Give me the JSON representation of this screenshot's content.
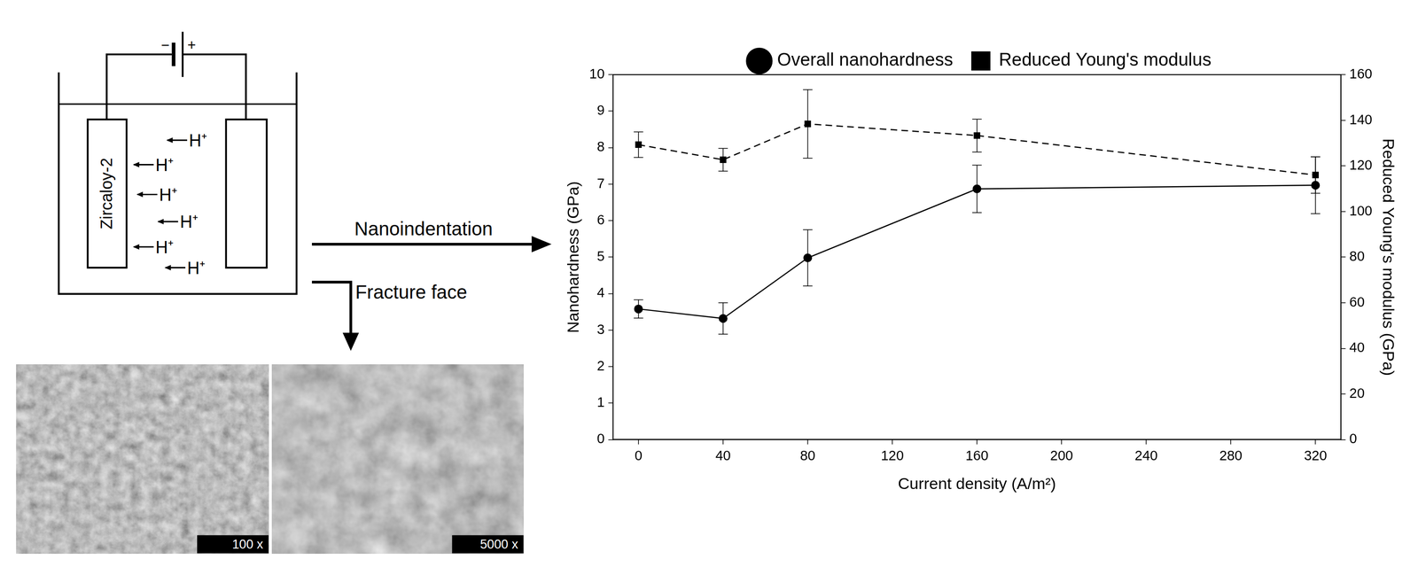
{
  "diagram": {
    "battery": {
      "negative": "−",
      "positive": "+"
    },
    "electrode_label": "Zircaloy-2",
    "ions": [
      "H⁺",
      "H⁺",
      "H⁺",
      "H⁺",
      "H⁺",
      "H⁺"
    ],
    "arrows": {
      "nanoindentation": "Nanoindentation",
      "fracture": "Fracture face"
    },
    "sem_images": [
      {
        "magnification": "100 x"
      },
      {
        "magnification": "5000 x"
      }
    ]
  },
  "chart_data": {
    "type": "line",
    "x": [
      0,
      40,
      80,
      160,
      320
    ],
    "xlabel": "Current density (A/m²)",
    "ylabel": "Nanohardness (GPa)",
    "y2label": "Reduced Young's modulus (GPa)",
    "xlim": [
      -12,
      332
    ],
    "xticks": [
      0,
      40,
      80,
      120,
      160,
      200,
      240,
      280,
      320
    ],
    "ylim": [
      0,
      10
    ],
    "yticks": [
      0,
      1,
      2,
      3,
      4,
      5,
      6,
      7,
      8,
      9,
      10
    ],
    "y2lim": [
      0,
      160
    ],
    "y2ticks": [
      0,
      20,
      40,
      60,
      80,
      100,
      120,
      140,
      160
    ],
    "grid": false,
    "legend": "top",
    "series": [
      {
        "name": "Overall nanohardness",
        "color": "#000000",
        "marker": "circle",
        "line_style": "solid",
        "values": [
          3.58,
          3.32,
          4.98,
          6.87,
          6.97
        ],
        "errors": [
          0.25,
          0.43,
          0.77,
          0.65,
          0.78
        ]
      },
      {
        "name": "Reduced Young's modulus",
        "color": "#000000",
        "marker": "square",
        "line_style": "dashed",
        "axis": "y2",
        "values": [
          129.3,
          122.7,
          138.4,
          133.3,
          116
        ],
        "errors": [
          5.6,
          5,
          15,
          7.2,
          8
        ]
      }
    ]
  }
}
